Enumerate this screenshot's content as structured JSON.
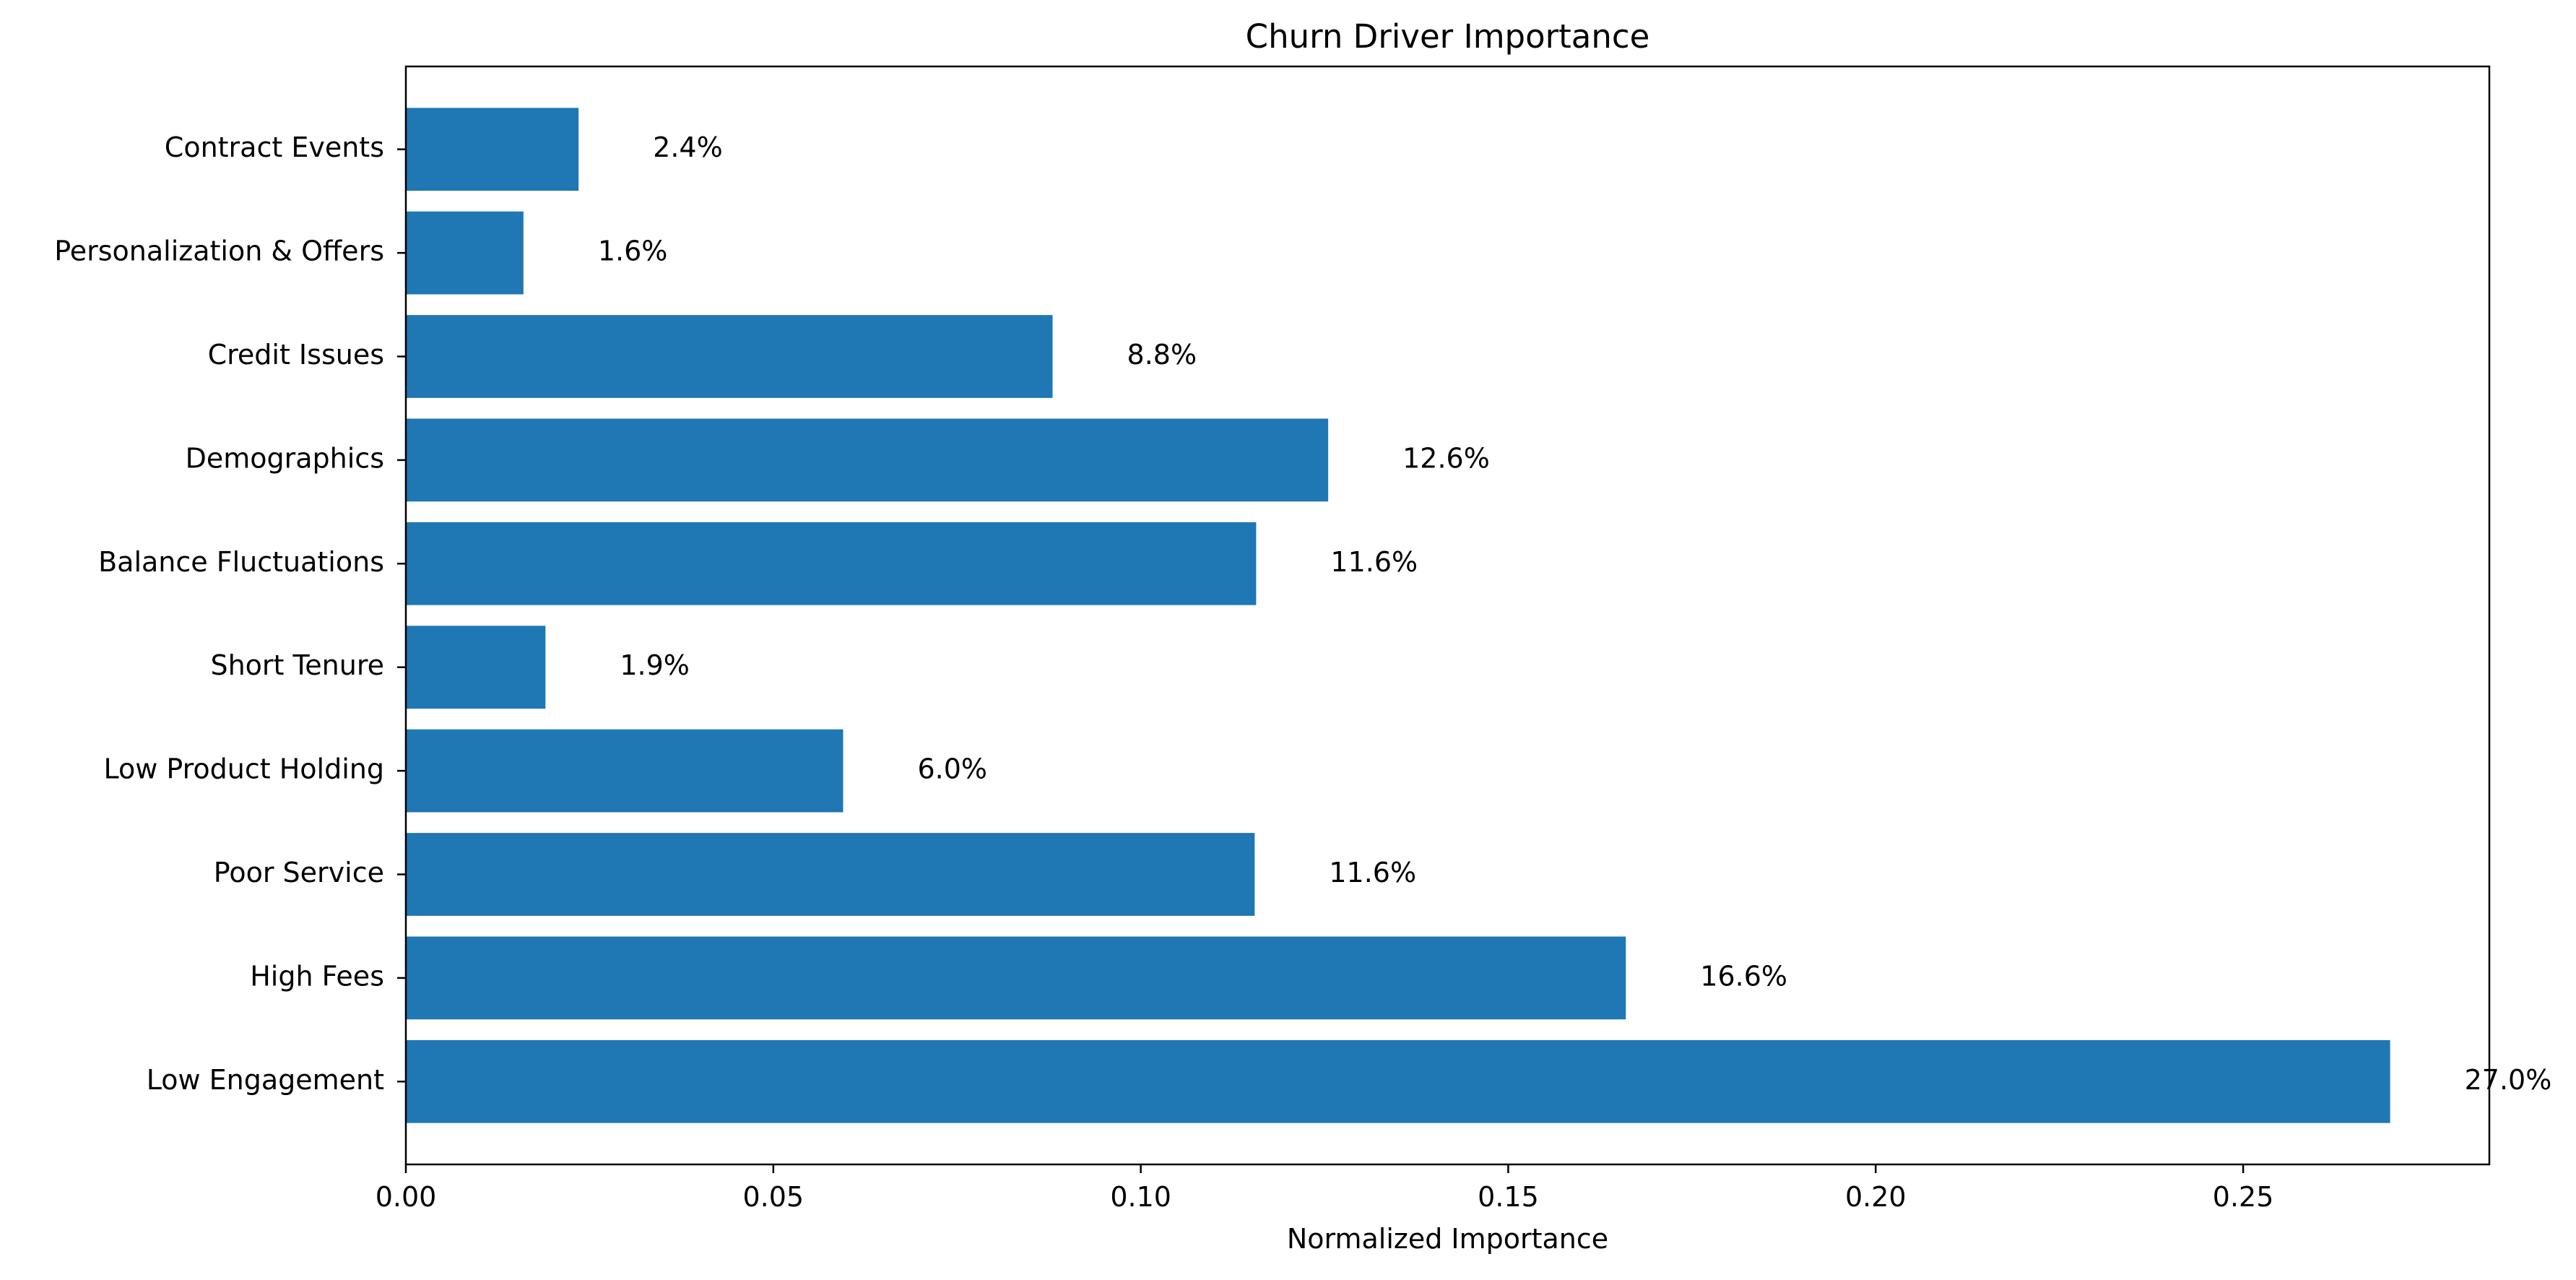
{
  "chart_data": {
    "type": "bar",
    "orientation": "horizontal",
    "title": "Churn Driver Importance",
    "xlabel": "Normalized Importance",
    "ylabel": "",
    "categories": [
      "Low Engagement",
      "High Fees",
      "Poor Service",
      "Low Product Holding",
      "Short Tenure",
      "Balance Fluctuations",
      "Demographics",
      "Credit Issues",
      "Personalization & Offers",
      "Contract Events"
    ],
    "values": [
      0.27,
      0.166,
      0.1155,
      0.0595,
      0.019,
      0.1157,
      0.1255,
      0.088,
      0.016,
      0.0235
    ],
    "data_labels": [
      "27.0%",
      "16.6%",
      "11.6%",
      "6.0%",
      "1.9%",
      "11.6%",
      "12.6%",
      "8.8%",
      "1.6%",
      "2.4%"
    ],
    "xlim": [
      0,
      0.2835
    ],
    "xticks": [
      0.0,
      0.05,
      0.1,
      0.15,
      0.2,
      0.25
    ],
    "xtick_labels": [
      "0.00",
      "0.05",
      "0.10",
      "0.15",
      "0.20",
      "0.25"
    ],
    "grid": false,
    "legend": false,
    "bar_color": "#1f77b4"
  }
}
